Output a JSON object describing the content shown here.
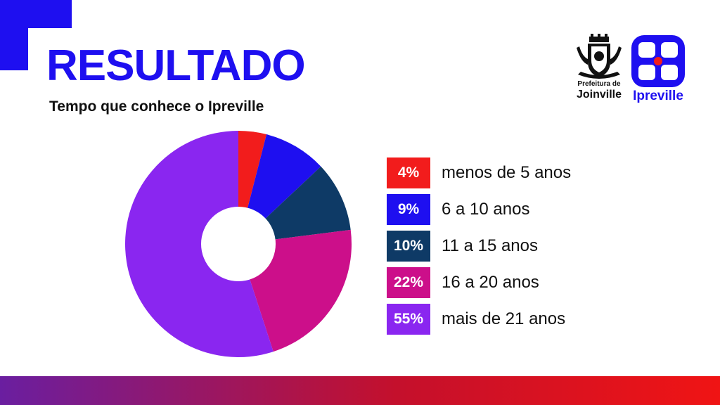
{
  "title": "RESULTADO",
  "subtitle": "Tempo que conhece o Ipreville",
  "logos": {
    "joinville_line1": "Prefeitura de",
    "joinville_line2": "Joinville",
    "ipreville": "Ipreville"
  },
  "colors": {
    "accent": "#1e0ff0",
    "series": [
      "#f21c1c",
      "#1e0ff0",
      "#0e3a66",
      "#cc0f8a",
      "#8a26f0"
    ]
  },
  "chart_data": {
    "type": "pie",
    "title": "Tempo que conhece o Ipreville",
    "donut": true,
    "legend_position": "right",
    "categories": [
      "menos de 5 anos",
      "6 a 10 anos",
      "11 a 15 anos",
      "16 a 20 anos",
      "mais de 21 anos"
    ],
    "values": [
      4,
      9,
      10,
      22,
      55
    ],
    "labels": [
      "4%",
      "9%",
      "10%",
      "22%",
      "55%"
    ]
  }
}
